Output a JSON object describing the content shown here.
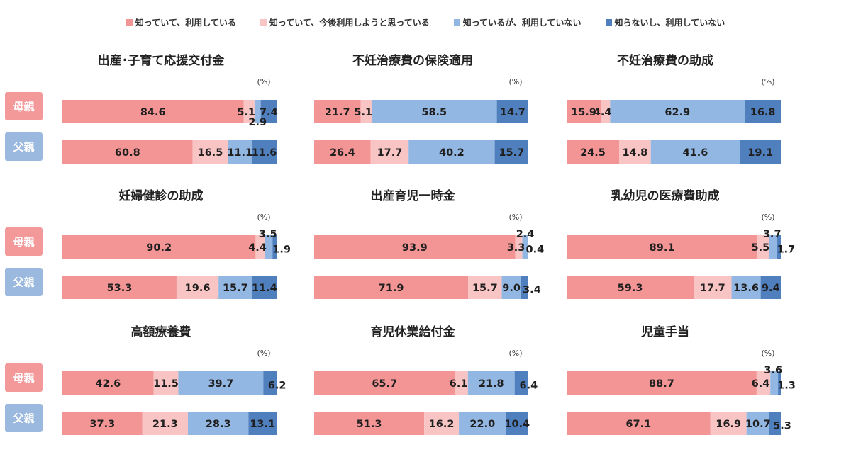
{
  "legend": [
    {
      "label": "知っていて、利用している",
      "color": "#f49595"
    },
    {
      "label": "知っていて、今後利用しようと思っている",
      "color": "#f9c4c4"
    },
    {
      "label": "知っているが、利用していない",
      "color": "#93b7e3"
    },
    {
      "label": "知らないし、利用していない",
      "color": "#4f7fbd"
    }
  ],
  "row_labels": [
    "母親",
    "父親"
  ],
  "row_label_colors": [
    "#f4999a",
    "#9bb9de"
  ],
  "unit": "(%)",
  "chart_data": [
    {
      "type": "bar",
      "orientation": "horizontal",
      "stacked": true,
      "title": "出産･子育て応援交付金",
      "categories": [
        "母親",
        "父親"
      ],
      "series": [
        {
          "name": "知っていて、利用している",
          "values": [
            84.6,
            60.8
          ]
        },
        {
          "name": "知っていて、今後利用しようと思っている",
          "values": [
            5.1,
            16.5
          ]
        },
        {
          "name": "知っているが、利用していない",
          "values": [
            2.9,
            11.1
          ]
        },
        {
          "name": "知らないし、利用していない",
          "values": [
            7.4,
            11.6
          ]
        }
      ]
    },
    {
      "type": "bar",
      "orientation": "horizontal",
      "stacked": true,
      "title": "不妊治療費の保険適用",
      "categories": [
        "母親",
        "父親"
      ],
      "series": [
        {
          "name": "知っていて、利用している",
          "values": [
            21.7,
            26.4
          ]
        },
        {
          "name": "知っていて、今後利用しようと思っている",
          "values": [
            5.1,
            17.7
          ]
        },
        {
          "name": "知っているが、利用していない",
          "values": [
            58.5,
            40.2
          ]
        },
        {
          "name": "知らないし、利用していない",
          "values": [
            14.7,
            15.7
          ]
        }
      ]
    },
    {
      "type": "bar",
      "orientation": "horizontal",
      "stacked": true,
      "title": "不妊治療費の助成",
      "categories": [
        "母親",
        "父親"
      ],
      "series": [
        {
          "name": "知っていて、利用している",
          "values": [
            15.9,
            24.5
          ]
        },
        {
          "name": "知っていて、今後利用しようと思っている",
          "values": [
            4.4,
            14.8
          ]
        },
        {
          "name": "知っているが、利用していない",
          "values": [
            62.9,
            41.6
          ]
        },
        {
          "name": "知らないし、利用していない",
          "values": [
            16.8,
            19.1
          ]
        }
      ]
    },
    {
      "type": "bar",
      "orientation": "horizontal",
      "stacked": true,
      "title": "妊婦健診の助成",
      "categories": [
        "母親",
        "父親"
      ],
      "series": [
        {
          "name": "知っていて、利用している",
          "values": [
            90.2,
            53.3
          ]
        },
        {
          "name": "知っていて、今後利用しようと思っている",
          "values": [
            4.4,
            19.6
          ]
        },
        {
          "name": "知っているが、利用していない",
          "values": [
            3.5,
            15.7
          ]
        },
        {
          "name": "知らないし、利用していない",
          "values": [
            1.9,
            11.4
          ]
        }
      ]
    },
    {
      "type": "bar",
      "orientation": "horizontal",
      "stacked": true,
      "title": "出産育児一時金",
      "categories": [
        "母親",
        "父親"
      ],
      "series": [
        {
          "name": "知っていて、利用している",
          "values": [
            93.9,
            71.9
          ]
        },
        {
          "name": "知っていて、今後利用しようと思っている",
          "values": [
            3.3,
            15.7
          ]
        },
        {
          "name": "知っているが、利用していない",
          "values": [
            2.4,
            9.0
          ]
        },
        {
          "name": "知らないし、利用していない",
          "values": [
            0.4,
            3.4
          ]
        }
      ]
    },
    {
      "type": "bar",
      "orientation": "horizontal",
      "stacked": true,
      "title": "乳幼児の医療費助成",
      "categories": [
        "母親",
        "父親"
      ],
      "series": [
        {
          "name": "知っていて、利用している",
          "values": [
            89.1,
            59.3
          ]
        },
        {
          "name": "知っていて、今後利用しようと思っている",
          "values": [
            5.5,
            17.7
          ]
        },
        {
          "name": "知っているが、利用していない",
          "values": [
            3.7,
            13.6
          ]
        },
        {
          "name": "知らないし、利用していない",
          "values": [
            1.7,
            9.4
          ]
        }
      ]
    },
    {
      "type": "bar",
      "orientation": "horizontal",
      "stacked": true,
      "title": "高額療養費",
      "categories": [
        "母親",
        "父親"
      ],
      "series": [
        {
          "name": "知っていて、利用している",
          "values": [
            42.6,
            37.3
          ]
        },
        {
          "name": "知っていて、今後利用しようと思っている",
          "values": [
            11.5,
            21.3
          ]
        },
        {
          "name": "知っているが、利用していない",
          "values": [
            39.7,
            28.3
          ]
        },
        {
          "name": "知らないし、利用していない",
          "values": [
            6.2,
            13.1
          ]
        }
      ]
    },
    {
      "type": "bar",
      "orientation": "horizontal",
      "stacked": true,
      "title": "育児休業給付金",
      "categories": [
        "母親",
        "父親"
      ],
      "series": [
        {
          "name": "知っていて、利用している",
          "values": [
            65.7,
            51.3
          ]
        },
        {
          "name": "知っていて、今後利用しようと思っている",
          "values": [
            6.1,
            16.2
          ]
        },
        {
          "name": "知っているが、利用していない",
          "values": [
            21.8,
            22.0
          ]
        },
        {
          "name": "知らないし、利用していない",
          "values": [
            6.4,
            10.4
          ]
        }
      ]
    },
    {
      "type": "bar",
      "orientation": "horizontal",
      "stacked": true,
      "title": "児童手当",
      "categories": [
        "母親",
        "父親"
      ],
      "series": [
        {
          "name": "知っていて、利用している",
          "values": [
            88.7,
            67.1
          ]
        },
        {
          "name": "知っていて、今後利用しようと思っている",
          "values": [
            6.4,
            16.9
          ]
        },
        {
          "name": "知っているが、利用していない",
          "values": [
            3.6,
            10.7
          ]
        },
        {
          "name": "知らないし、利用していない",
          "values": [
            1.3,
            5.3
          ]
        }
      ]
    }
  ]
}
